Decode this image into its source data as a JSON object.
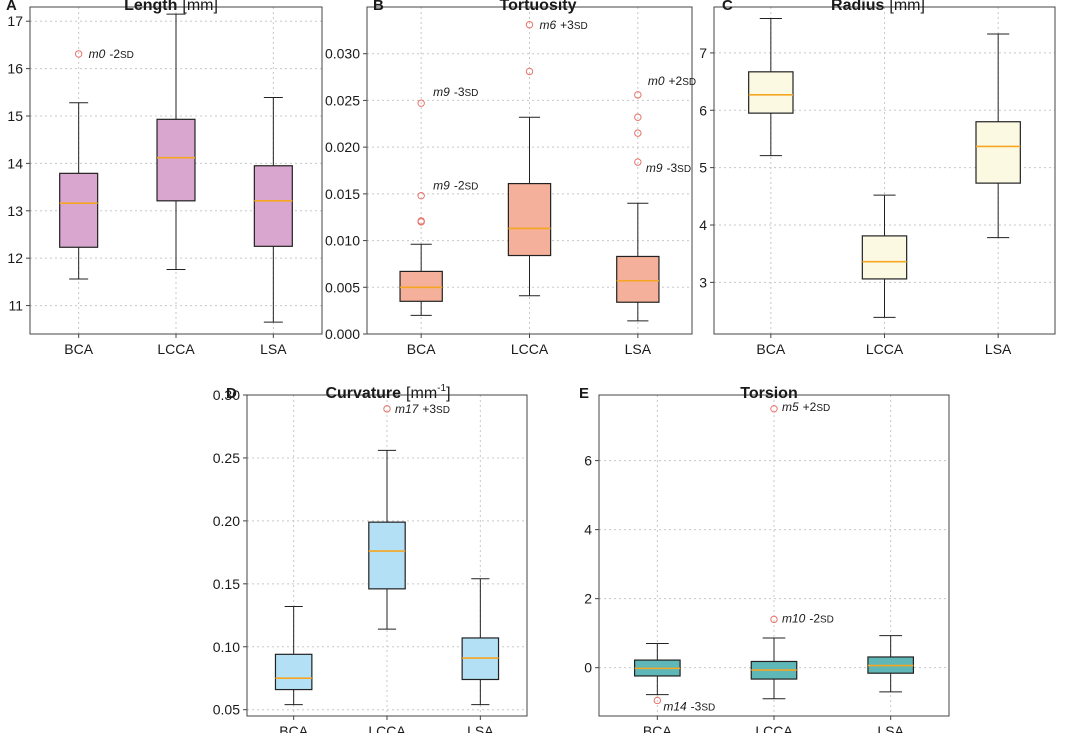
{
  "chart_data": [
    {
      "type": "box",
      "label": "A",
      "title": "Length",
      "unit": "[mm]",
      "unit_sup": "",
      "unit_end": "",
      "categories": [
        "BCA",
        "LCCA",
        "LSA"
      ],
      "ylim": [
        10.4,
        17.3
      ],
      "yticks": [
        11,
        12,
        13,
        14,
        15,
        16,
        17
      ],
      "ytick_labels": [
        "11",
        "12",
        "13",
        "14",
        "15",
        "16",
        "17"
      ],
      "box_color": "#d8a6cf",
      "median_color": "#f5a623",
      "outlier_color": "#e8736a",
      "boxes": [
        {
          "category": "BCA",
          "whisker_low": 11.56,
          "q1": 12.23,
          "median": 13.16,
          "q3": 13.79,
          "whisker_high": 15.28,
          "outliers": [
            16.31
          ]
        },
        {
          "category": "LCCA",
          "whisker_low": 11.76,
          "q1": 13.21,
          "median": 14.12,
          "q3": 14.93,
          "whisker_high": 17.15,
          "outliers": []
        },
        {
          "category": "LSA",
          "whisker_low": 10.65,
          "q1": 12.25,
          "median": 13.21,
          "q3": 13.95,
          "whisker_high": 15.39,
          "outliers": []
        }
      ],
      "annotations": [
        {
          "m": "m0",
          "sd": "-2",
          "suffix": "SD",
          "x": "BCA",
          "y": 16.31
        }
      ]
    },
    {
      "type": "box",
      "label": "B",
      "title": "Tortuosity",
      "unit": "",
      "unit_sup": "",
      "unit_end": "",
      "categories": [
        "BCA",
        "LCCA",
        "LSA"
      ],
      "ylim": [
        0,
        0.035
      ],
      "yticks": [
        0,
        0.005,
        0.01,
        0.015,
        0.02,
        0.025,
        0.03
      ],
      "ytick_labels": [
        "0.000",
        "0.005",
        "0.010",
        "0.015",
        "0.020",
        "0.025",
        "0.030"
      ],
      "box_color": "#f4b09b",
      "median_color": "#f5a623",
      "outlier_color": "#e8736a",
      "boxes": [
        {
          "category": "BCA",
          "whisker_low": 0.002,
          "q1": 0.0035,
          "median": 0.005,
          "q3": 0.0067,
          "whisker_high": 0.0096,
          "outliers": [
            0.0247,
            0.0148,
            0.0121,
            0.012
          ]
        },
        {
          "category": "LCCA",
          "whisker_low": 0.0041,
          "q1": 0.0084,
          "median": 0.0113,
          "q3": 0.0161,
          "whisker_high": 0.0232,
          "outliers": [
            0.0331,
            0.0281
          ]
        },
        {
          "category": "LSA",
          "whisker_low": 0.0014,
          "q1": 0.0034,
          "median": 0.0057,
          "q3": 0.0083,
          "whisker_high": 0.014,
          "outliers": [
            0.0256,
            0.0232,
            0.0215,
            0.0184
          ]
        }
      ],
      "annotations": [
        {
          "m": "m9",
          "sd": "-3",
          "suffix": "SD",
          "x": "BCA",
          "y": 0.0247
        },
        {
          "m": "m9",
          "sd": "-2",
          "suffix": "SD",
          "x": "BCA",
          "y": 0.0148
        },
        {
          "m": "m6",
          "sd": "+3",
          "suffix": "SD",
          "x": "LCCA",
          "y": 0.0331
        },
        {
          "m": "m0",
          "sd": "+2",
          "suffix": "SD",
          "x": "LSA",
          "y": 0.0256
        },
        {
          "m": "m9",
          "sd": "-3",
          "suffix": "SD",
          "x": "LSA",
          "y": 0.0184
        }
      ]
    },
    {
      "type": "box",
      "label": "C",
      "title": "Radius",
      "unit": "[mm]",
      "unit_sup": "",
      "unit_end": "",
      "categories": [
        "BCA",
        "LCCA",
        "LSA"
      ],
      "ylim": [
        2.1,
        7.8
      ],
      "yticks": [
        3,
        4,
        5,
        6,
        7
      ],
      "ytick_labels": [
        "3",
        "4",
        "5",
        "6",
        "7"
      ],
      "box_color": "#fcf9e3",
      "median_color": "#f5a623",
      "outlier_color": "#e8736a",
      "boxes": [
        {
          "category": "BCA",
          "whisker_low": 5.21,
          "q1": 5.95,
          "median": 6.27,
          "q3": 6.67,
          "whisker_high": 7.6,
          "outliers": []
        },
        {
          "category": "LCCA",
          "whisker_low": 2.39,
          "q1": 3.06,
          "median": 3.36,
          "q3": 3.81,
          "whisker_high": 4.52,
          "outliers": []
        },
        {
          "category": "LSA",
          "whisker_low": 3.78,
          "q1": 4.73,
          "median": 5.37,
          "q3": 5.8,
          "whisker_high": 7.33,
          "outliers": []
        }
      ],
      "annotations": []
    },
    {
      "type": "box",
      "label": "D",
      "title": "Curvature",
      "unit": "[mm",
      "unit_sup": "-1",
      "unit_end": "]",
      "categories": [
        "BCA",
        "LCCA",
        "LSA"
      ],
      "ylim": [
        0.045,
        0.3
      ],
      "yticks": [
        0.05,
        0.1,
        0.15,
        0.2,
        0.25,
        0.3
      ],
      "ytick_labels": [
        "0.05",
        "0.10",
        "0.15",
        "0.20",
        "0.25",
        "0.30"
      ],
      "box_color": "#b3e0f5",
      "median_color": "#f5a623",
      "outlier_color": "#e8736a",
      "boxes": [
        {
          "category": "BCA",
          "whisker_low": 0.054,
          "q1": 0.066,
          "median": 0.075,
          "q3": 0.094,
          "whisker_high": 0.132,
          "outliers": []
        },
        {
          "category": "LCCA",
          "whisker_low": 0.114,
          "q1": 0.146,
          "median": 0.176,
          "q3": 0.199,
          "whisker_high": 0.256,
          "outliers": [
            0.289
          ]
        },
        {
          "category": "LSA",
          "whisker_low": 0.054,
          "q1": 0.074,
          "median": 0.091,
          "q3": 0.107,
          "whisker_high": 0.154,
          "outliers": []
        }
      ],
      "annotations": [
        {
          "m": "m17",
          "sd": "+3",
          "suffix": "SD",
          "x": "LCCA",
          "y": 0.289
        }
      ]
    },
    {
      "type": "box",
      "label": "E",
      "title": "Torsion",
      "unit": "",
      "unit_sup": "",
      "unit_end": "",
      "categories": [
        "BCA",
        "LCCA",
        "LSA"
      ],
      "ylim": [
        -1.4,
        7.9
      ],
      "yticks": [
        0,
        2,
        4,
        6
      ],
      "ytick_labels": [
        "0",
        "2",
        "4",
        "6"
      ],
      "box_color": "#5fb8b7",
      "median_color": "#f5a623",
      "outlier_color": "#e8736a",
      "boxes": [
        {
          "category": "BCA",
          "whisker_low": -0.78,
          "q1": -0.24,
          "median": -0.02,
          "q3": 0.22,
          "whisker_high": 0.7,
          "outliers": [
            -0.95
          ]
        },
        {
          "category": "LCCA",
          "whisker_low": -0.9,
          "q1": -0.33,
          "median": -0.07,
          "q3": 0.18,
          "whisker_high": 0.86,
          "outliers": [
            7.5,
            1.4
          ]
        },
        {
          "category": "LSA",
          "whisker_low": -0.7,
          "q1": -0.16,
          "median": 0.06,
          "q3": 0.31,
          "whisker_high": 0.93,
          "outliers": []
        }
      ],
      "annotations": [
        {
          "m": "m5",
          "sd": "+2",
          "suffix": "SD",
          "x": "LCCA",
          "y": 7.5
        },
        {
          "m": "m10",
          "sd": "-2",
          "suffix": "SD",
          "x": "LCCA",
          "y": 1.4
        },
        {
          "m": "m14",
          "sd": "-3",
          "suffix": "SD",
          "x": "BCA",
          "y": -0.95
        }
      ]
    }
  ]
}
